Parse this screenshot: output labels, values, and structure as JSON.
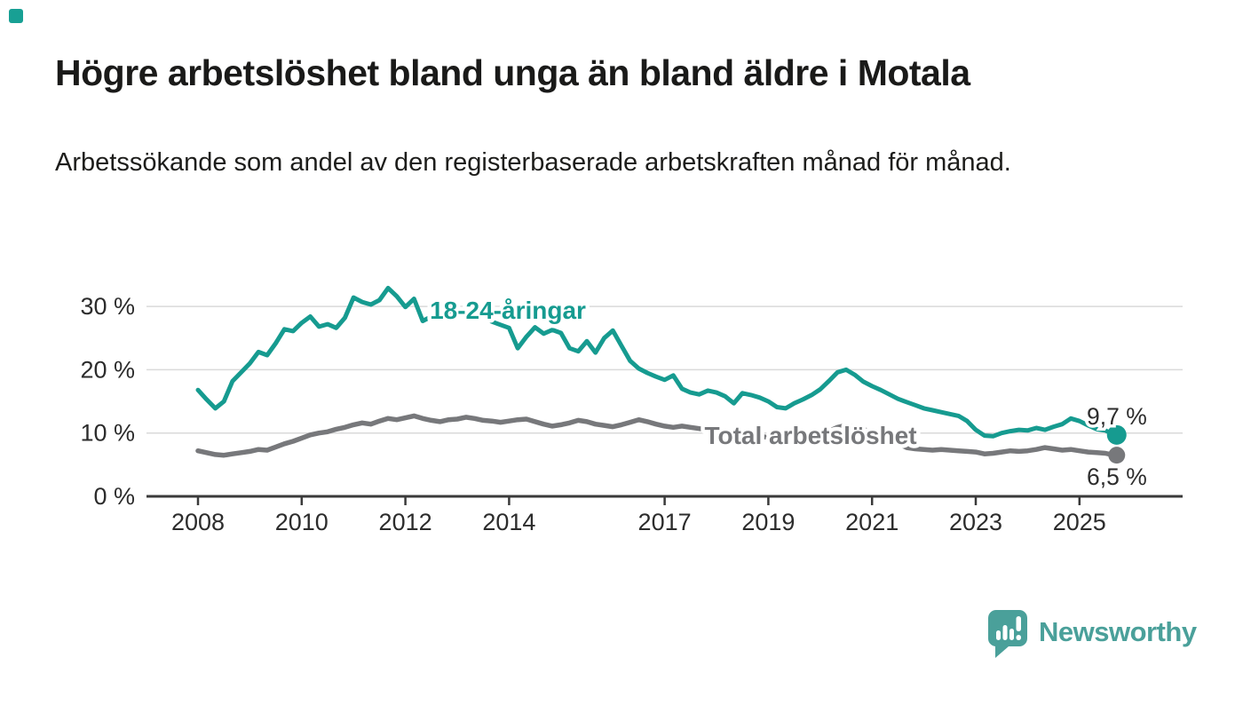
{
  "header": {
    "title": "Högre arbetslöshet bland unga än bland äldre i Motala",
    "subtitle": "Arbetssökande som andel av den registerbaserade arbetskraften månad för månad."
  },
  "corner_mark": {
    "color": "#18a094"
  },
  "branding": {
    "name": "Newsworthy",
    "color": "#4aa09a"
  },
  "chart_data": {
    "type": "line",
    "title": "Högre arbetslöshet bland unga än bland äldre i Motala",
    "subtitle": "Arbetssökande som andel av den registerbaserade arbetskraften månad för månad.",
    "unit": "%",
    "x_start_year": 2008.0,
    "x_step_years": 0.16667,
    "x_end_year": 2025.67,
    "ylim": [
      0,
      35
    ],
    "grid": "horizontal",
    "legend": "inline-labels",
    "y_ticks": [
      {
        "value": 0,
        "label": "0 %"
      },
      {
        "value": 10,
        "label": "10 %"
      },
      {
        "value": 20,
        "label": "20 %"
      },
      {
        "value": 30,
        "label": "30 %"
      }
    ],
    "x_ticks": [
      {
        "value": 2008,
        "label": "2008"
      },
      {
        "value": 2010,
        "label": "2010"
      },
      {
        "value": 2012,
        "label": "2012"
      },
      {
        "value": 2014,
        "label": "2014"
      },
      {
        "value": 2017,
        "label": "2017"
      },
      {
        "value": 2019,
        "label": "2019"
      },
      {
        "value": 2021,
        "label": "2021"
      },
      {
        "value": 2023,
        "label": "2023"
      },
      {
        "value": 2025,
        "label": "2025"
      }
    ],
    "series": [
      {
        "name": "18-24-åringar",
        "color": "#169b90",
        "end_label": "9,7 %",
        "end_value": 9.7,
        "values": [
          16.8,
          15.3,
          13.9,
          15.0,
          18.2,
          19.6,
          21.0,
          22.8,
          22.3,
          24.2,
          26.4,
          26.1,
          27.4,
          28.4,
          26.8,
          27.2,
          26.6,
          28.2,
          31.4,
          30.7,
          30.3,
          31.0,
          32.9,
          31.6,
          29.9,
          31.2,
          27.7,
          28.4,
          30.2,
          29.2,
          29.6,
          28.7,
          28.1,
          28.6,
          27.6,
          27.1,
          26.6,
          23.4,
          25.2,
          26.7,
          25.7,
          26.3,
          25.8,
          23.4,
          22.9,
          24.5,
          22.7,
          25.0,
          26.2,
          23.8,
          21.4,
          20.2,
          19.5,
          18.9,
          18.4,
          19.1,
          17.0,
          16.4,
          16.1,
          16.7,
          16.4,
          15.8,
          14.7,
          16.3,
          16.0,
          15.6,
          15.0,
          14.1,
          13.9,
          14.7,
          15.3,
          16.0,
          16.9,
          18.2,
          19.6,
          20.0,
          19.2,
          18.1,
          17.4,
          16.8,
          16.1,
          15.4,
          14.9,
          14.4,
          13.9,
          13.6,
          13.3,
          13.0,
          12.7,
          11.9,
          10.5,
          9.6,
          9.5,
          10.0,
          10.3,
          10.5,
          10.4,
          10.8,
          10.5,
          11.0,
          11.4,
          12.3,
          11.9,
          11.2,
          10.6,
          10.4,
          9.7
        ]
      },
      {
        "name": "Total arbetslöshet",
        "color": "#77787b",
        "end_label": "6,5 %",
        "end_value": 6.5,
        "values": [
          7.2,
          6.9,
          6.6,
          6.5,
          6.7,
          6.9,
          7.1,
          7.4,
          7.3,
          7.8,
          8.3,
          8.7,
          9.2,
          9.7,
          10.0,
          10.2,
          10.6,
          10.9,
          11.3,
          11.6,
          11.4,
          11.9,
          12.3,
          12.1,
          12.4,
          12.7,
          12.3,
          12.0,
          11.8,
          12.1,
          12.2,
          12.5,
          12.3,
          12.0,
          11.9,
          11.7,
          11.9,
          12.1,
          12.2,
          11.8,
          11.4,
          11.1,
          11.3,
          11.6,
          12.0,
          11.8,
          11.4,
          11.2,
          11.0,
          11.3,
          11.7,
          12.1,
          11.8,
          11.4,
          11.1,
          10.9,
          11.1,
          10.9,
          10.7,
          10.6,
          10.4,
          10.2,
          10.0,
          9.9,
          9.7,
          9.5,
          9.3,
          9.1,
          9.0,
          9.1,
          9.2,
          9.4,
          9.7,
          10.3,
          10.9,
          11.2,
          11.0,
          10.6,
          10.1,
          9.6,
          9.0,
          8.4,
          7.7,
          7.5,
          7.4,
          7.3,
          7.4,
          7.3,
          7.2,
          7.1,
          7.0,
          6.7,
          6.8,
          7.0,
          7.2,
          7.1,
          7.2,
          7.4,
          7.7,
          7.5,
          7.3,
          7.4,
          7.2,
          7.0,
          6.9,
          6.8,
          6.5
        ]
      }
    ]
  }
}
